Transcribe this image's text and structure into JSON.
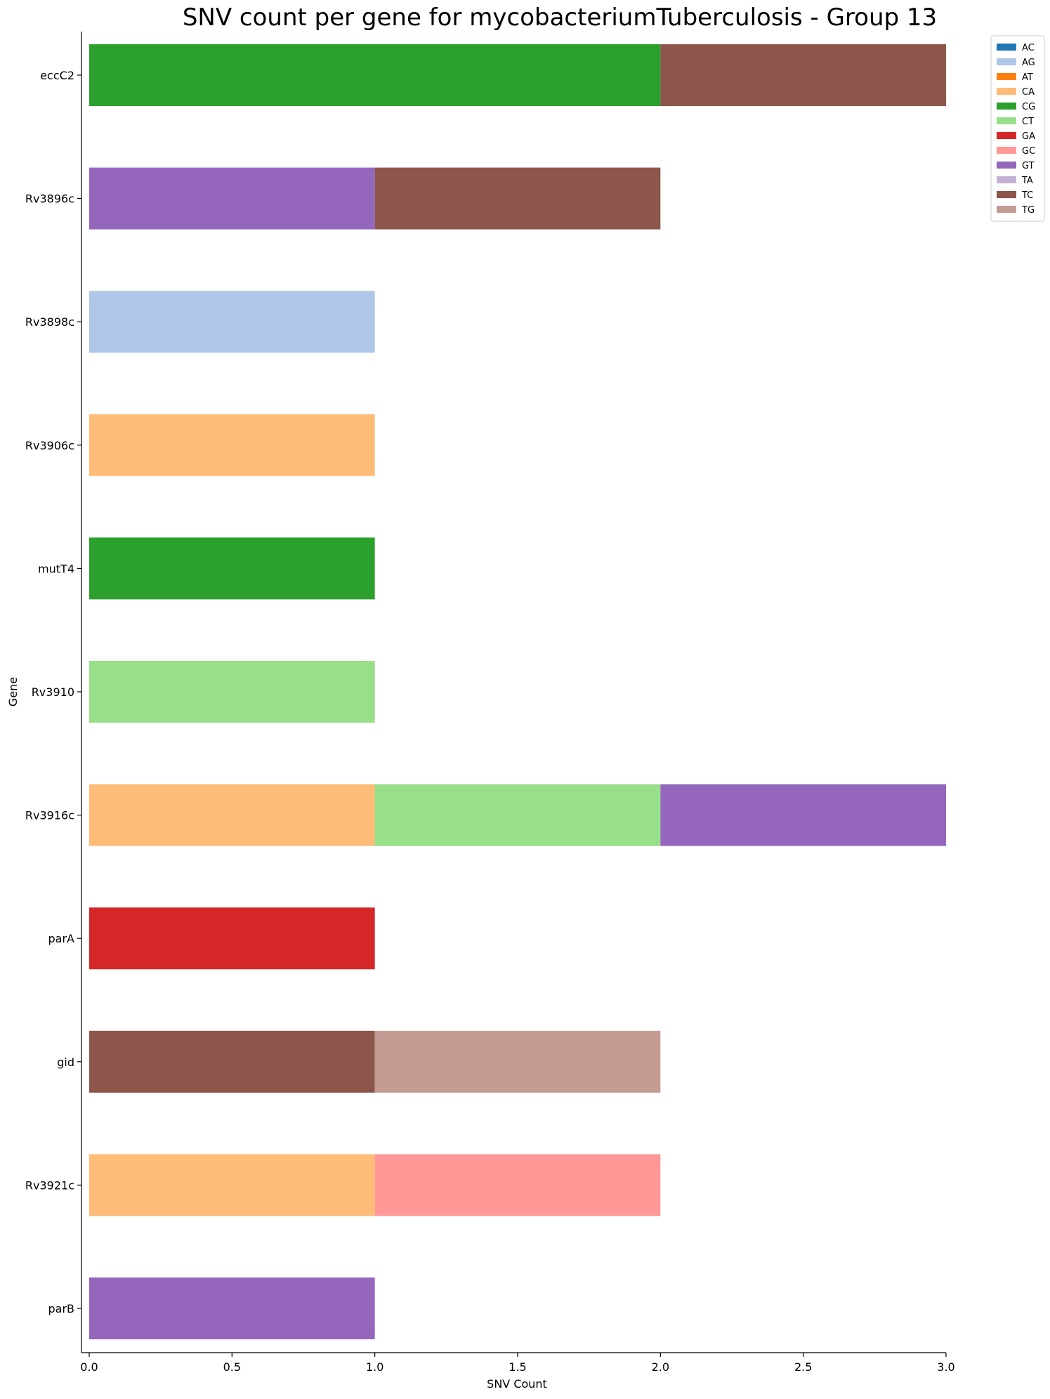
{
  "chart_data": {
    "type": "bar",
    "orientation": "horizontal",
    "stacked": true,
    "title": "SNV count per gene for mycobacteriumTuberculosis - Group 13",
    "xlabel": "SNV Count",
    "ylabel": "Gene",
    "xlim": [
      0,
      3.0
    ],
    "xticks": [
      "0.0",
      "0.5",
      "1.0",
      "1.5",
      "2.0",
      "2.5",
      "3.0"
    ],
    "grid": false,
    "legend_position": "top-right outside",
    "categories": [
      "eccC2",
      "Rv3896c",
      "Rv3898c",
      "Rv3906c",
      "mutT4",
      "Rv3910",
      "Rv3916c",
      "parA",
      "gid",
      "Rv3921c",
      "parB"
    ],
    "series": [
      {
        "name": "AC",
        "color": "#1f77b4",
        "values": [
          0,
          0,
          0,
          0,
          0,
          0,
          0,
          0,
          0,
          0,
          0
        ]
      },
      {
        "name": "AG",
        "color": "#aec7e8",
        "values": [
          0,
          0,
          1,
          0,
          0,
          0,
          0,
          0,
          0,
          0,
          0
        ]
      },
      {
        "name": "AT",
        "color": "#ff7f0e",
        "values": [
          0,
          0,
          0,
          0,
          0,
          0,
          0,
          0,
          0,
          0,
          0
        ]
      },
      {
        "name": "CA",
        "color": "#ffbb78",
        "values": [
          0,
          0,
          0,
          1,
          0,
          0,
          1,
          0,
          0,
          1,
          0
        ]
      },
      {
        "name": "CG",
        "color": "#2ca02c",
        "values": [
          2,
          0,
          0,
          0,
          1,
          0,
          0,
          0,
          0,
          0,
          0
        ]
      },
      {
        "name": "CT",
        "color": "#98df8a",
        "values": [
          0,
          0,
          0,
          0,
          0,
          1,
          1,
          0,
          0,
          0,
          0
        ]
      },
      {
        "name": "GA",
        "color": "#d62728",
        "values": [
          0,
          0,
          0,
          0,
          0,
          0,
          0,
          1,
          0,
          0,
          0
        ]
      },
      {
        "name": "GC",
        "color": "#ff9896",
        "values": [
          0,
          0,
          0,
          0,
          0,
          0,
          0,
          0,
          0,
          1,
          0
        ]
      },
      {
        "name": "GT",
        "color": "#9467bd",
        "values": [
          0,
          1,
          0,
          0,
          0,
          0,
          1,
          0,
          0,
          0,
          1
        ]
      },
      {
        "name": "TA",
        "color": "#c5b0d5",
        "values": [
          0,
          0,
          0,
          0,
          0,
          0,
          0,
          0,
          0,
          0,
          0
        ]
      },
      {
        "name": "TC",
        "color": "#8c564b",
        "values": [
          1,
          1,
          0,
          0,
          0,
          0,
          0,
          0,
          1,
          0,
          0
        ]
      },
      {
        "name": "TG",
        "color": "#c49c94",
        "values": [
          0,
          0,
          0,
          0,
          0,
          0,
          0,
          0,
          1,
          0,
          0
        ]
      }
    ]
  }
}
